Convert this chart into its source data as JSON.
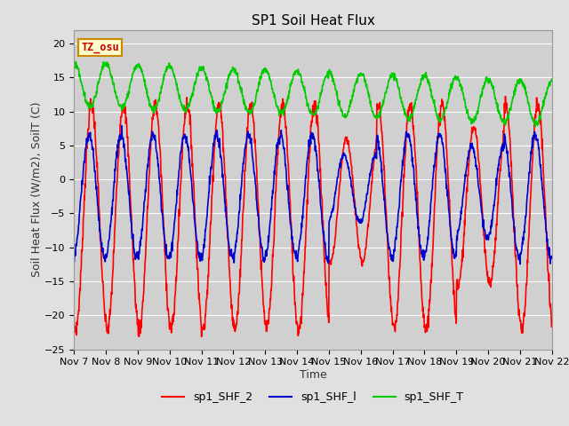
{
  "title": "SP1 Soil Heat Flux",
  "xlabel": "Time",
  "ylabel": "Soil Heat Flux (W/m2), SoilT (C)",
  "ylim": [
    -25,
    22
  ],
  "yticks": [
    -25,
    -20,
    -15,
    -10,
    -5,
    0,
    5,
    10,
    15,
    20
  ],
  "n_days": 15,
  "xtick_labels": [
    "Nov 7",
    "Nov 8",
    "Nov 9",
    "Nov 10",
    "Nov 11",
    "Nov 12",
    "Nov 13",
    "Nov 14",
    "Nov 15",
    "Nov 16",
    "Nov 17",
    "Nov 18",
    "Nov 19",
    "Nov 20",
    "Nov 21",
    "Nov 22"
  ],
  "color_shf2": "#ff0000",
  "color_shf1": "#0000cc",
  "color_shft": "#00cc00",
  "color_fig_bg": "#e0e0e0",
  "color_plot_bg": "#d0d0d0",
  "annotation_text": "TZ_osu",
  "annotation_color": "#cc0000",
  "annotation_bg": "#ffffcc",
  "annotation_border": "#cc8800",
  "legend_entries": [
    "sp1_SHF_2",
    "sp1_SHF_l",
    "sp1_SHF_T"
  ],
  "title_fontsize": 11,
  "label_fontsize": 9,
  "tick_fontsize": 8,
  "linewidth": 1.2
}
